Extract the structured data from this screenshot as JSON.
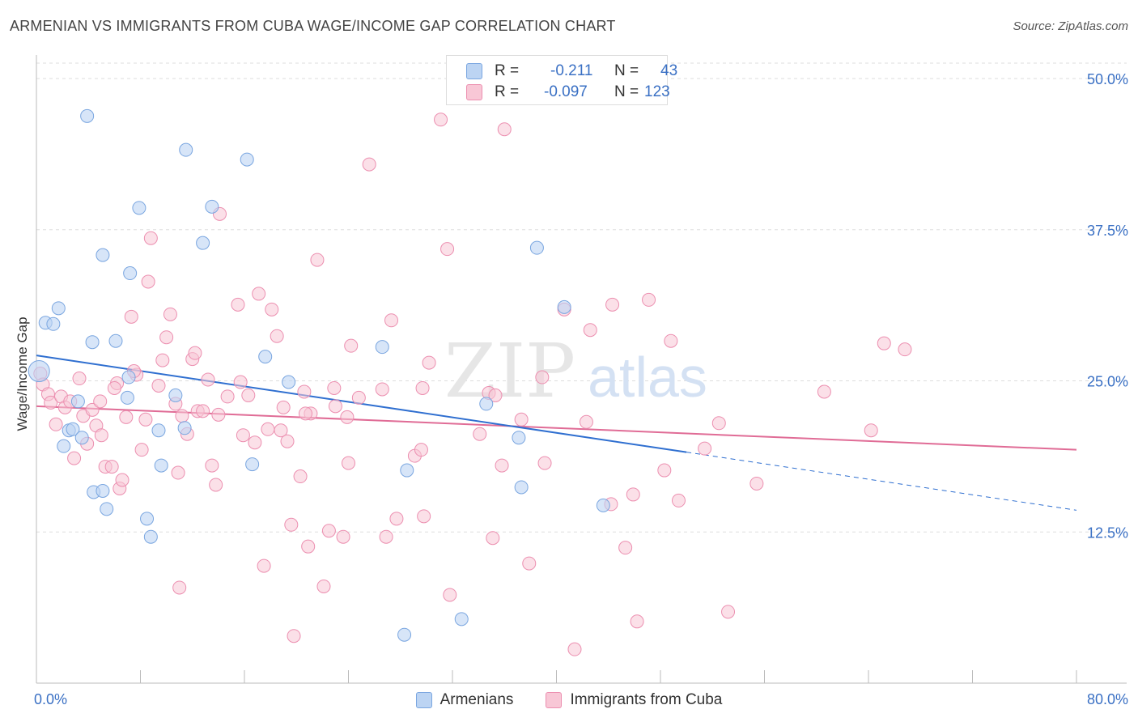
{
  "title": "ARMENIAN VS IMMIGRANTS FROM CUBA WAGE/INCOME GAP CORRELATION CHART",
  "source": "Source: ZipAtlas.com",
  "watermark": {
    "zip": "ZIP",
    "atlas": "atlas"
  },
  "stats_box": {
    "rows": [
      {
        "r_label": "R =",
        "r_value": "-0.211",
        "n_label": "N =",
        "n_value": "43",
        "color": "#bcd4f3"
      },
      {
        "r_label": "R =",
        "r_value": "-0.097",
        "n_label": "N =",
        "n_value": "123",
        "color": "#f8c7d6"
      }
    ]
  },
  "legend": {
    "items": [
      {
        "label": "Armenians",
        "color": "#bcd4f3"
      },
      {
        "label": "Immigrants from Cuba",
        "color": "#f8c7d6"
      }
    ]
  },
  "chart_data": {
    "type": "scatter",
    "title": "ARMENIAN VS IMMIGRANTS FROM CUBA WAGE/INCOME GAP CORRELATION CHART",
    "xlabel": "",
    "ylabel": "Wage/Income Gap",
    "xlim": [
      0,
      80
    ],
    "ylim": [
      0,
      50
    ],
    "x_tick_labels": [
      "0.0%",
      "80.0%"
    ],
    "y_ticks": [
      12.5,
      25.0,
      37.5,
      50.0
    ],
    "y_tick_labels": [
      "12.5%",
      "25.0%",
      "37.5%",
      "50.0%"
    ],
    "grid": true,
    "legend_position": "bottom",
    "series": [
      {
        "name": "Armenians",
        "color": "#7aa6e0",
        "fill": "#bcd4f3",
        "trend": {
          "x": [
            0,
            50
          ],
          "y": [
            27.1,
            19.1
          ],
          "dashed_to": [
            80,
            14.3
          ],
          "color": "#2f6fd0"
        },
        "points": [
          [
            0.2,
            25.8
          ],
          [
            0.7,
            29.8
          ],
          [
            1.3,
            29.7
          ],
          [
            1.7,
            31.0
          ],
          [
            3.9,
            46.9
          ],
          [
            2.1,
            19.6
          ],
          [
            2.5,
            20.9
          ],
          [
            2.8,
            21.0
          ],
          [
            3.2,
            23.3
          ],
          [
            3.5,
            20.3
          ],
          [
            4.4,
            15.8
          ],
          [
            5.1,
            15.9
          ],
          [
            5.4,
            14.4
          ],
          [
            4.3,
            28.2
          ],
          [
            6.1,
            28.3
          ],
          [
            5.1,
            35.4
          ],
          [
            7.1,
            25.3
          ],
          [
            7.0,
            23.6
          ],
          [
            7.2,
            33.9
          ],
          [
            7.9,
            39.3
          ],
          [
            8.5,
            13.6
          ],
          [
            8.8,
            12.1
          ],
          [
            9.4,
            20.9
          ],
          [
            9.6,
            18.0
          ],
          [
            10.7,
            23.8
          ],
          [
            11.4,
            21.1
          ],
          [
            11.5,
            44.1
          ],
          [
            12.8,
            36.4
          ],
          [
            13.5,
            39.4
          ],
          [
            16.2,
            43.3
          ],
          [
            16.6,
            18.1
          ],
          [
            17.6,
            27.0
          ],
          [
            19.4,
            24.9
          ],
          [
            26.6,
            27.8
          ],
          [
            28.5,
            17.6
          ],
          [
            28.3,
            4.0
          ],
          [
            32.7,
            5.3
          ],
          [
            34.6,
            23.1
          ],
          [
            37.1,
            20.3
          ],
          [
            37.3,
            16.2
          ],
          [
            38.5,
            36.0
          ],
          [
            40.6,
            31.1
          ],
          [
            43.6,
            14.7
          ]
        ]
      },
      {
        "name": "Immigrants from Cuba",
        "color": "#ec8fb0",
        "fill": "#f8c7d6",
        "trend": {
          "x": [
            0,
            80
          ],
          "y": [
            22.9,
            19.3
          ],
          "color": "#e06c96"
        },
        "points": [
          [
            0.3,
            25.6
          ],
          [
            0.5,
            24.7
          ],
          [
            0.9,
            23.9
          ],
          [
            1.1,
            23.2
          ],
          [
            1.5,
            21.4
          ],
          [
            1.9,
            23.7
          ],
          [
            2.2,
            22.8
          ],
          [
            2.6,
            23.3
          ],
          [
            2.9,
            18.6
          ],
          [
            3.3,
            25.2
          ],
          [
            3.6,
            22.1
          ],
          [
            3.9,
            19.8
          ],
          [
            4.3,
            22.6
          ],
          [
            4.6,
            21.3
          ],
          [
            5.0,
            20.5
          ],
          [
            4.9,
            23.3
          ],
          [
            5.3,
            17.9
          ],
          [
            5.8,
            17.9
          ],
          [
            6.2,
            24.8
          ],
          [
            6.4,
            16.1
          ],
          [
            6.6,
            16.8
          ],
          [
            6.9,
            22.0
          ],
          [
            7.3,
            30.3
          ],
          [
            7.7,
            25.5
          ],
          [
            8.1,
            19.3
          ],
          [
            8.4,
            21.8
          ],
          [
            8.6,
            33.2
          ],
          [
            8.8,
            36.8
          ],
          [
            9.4,
            24.6
          ],
          [
            9.7,
            26.7
          ],
          [
            10.0,
            28.6
          ],
          [
            10.3,
            30.5
          ],
          [
            10.7,
            23.1
          ],
          [
            10.9,
            17.4
          ],
          [
            11.0,
            7.9
          ],
          [
            11.2,
            22.1
          ],
          [
            11.6,
            20.6
          ],
          [
            12.0,
            26.8
          ],
          [
            12.2,
            27.3
          ],
          [
            12.4,
            22.5
          ],
          [
            12.8,
            22.5
          ],
          [
            13.2,
            25.1
          ],
          [
            13.5,
            18.0
          ],
          [
            13.8,
            16.4
          ],
          [
            14.0,
            22.2
          ],
          [
            14.7,
            23.7
          ],
          [
            15.5,
            31.3
          ],
          [
            15.7,
            24.9
          ],
          [
            15.9,
            20.5
          ],
          [
            16.3,
            23.8
          ],
          [
            16.8,
            19.9
          ],
          [
            17.1,
            32.2
          ],
          [
            17.5,
            9.7
          ],
          [
            17.8,
            21.0
          ],
          [
            18.1,
            30.9
          ],
          [
            18.5,
            28.7
          ],
          [
            18.8,
            20.9
          ],
          [
            19.0,
            22.8
          ],
          [
            19.3,
            20.0
          ],
          [
            19.6,
            13.1
          ],
          [
            19.8,
            3.9
          ],
          [
            20.3,
            17.1
          ],
          [
            20.6,
            24.1
          ],
          [
            20.9,
            11.3
          ],
          [
            21.1,
            22.3
          ],
          [
            21.6,
            35.0
          ],
          [
            22.1,
            8.0
          ],
          [
            22.5,
            12.6
          ],
          [
            22.9,
            24.4
          ],
          [
            23.0,
            22.9
          ],
          [
            23.6,
            12.1
          ],
          [
            23.9,
            22.0
          ],
          [
            24.0,
            18.2
          ],
          [
            24.2,
            27.9
          ],
          [
            24.8,
            23.6
          ],
          [
            25.6,
            42.9
          ],
          [
            26.6,
            24.3
          ],
          [
            26.9,
            12.1
          ],
          [
            27.3,
            30.0
          ],
          [
            27.7,
            13.6
          ],
          [
            29.1,
            18.8
          ],
          [
            29.6,
            19.3
          ],
          [
            29.8,
            13.8
          ],
          [
            30.2,
            26.5
          ],
          [
            29.7,
            24.4
          ],
          [
            31.1,
            46.6
          ],
          [
            31.6,
            35.9
          ],
          [
            31.8,
            7.3
          ],
          [
            34.1,
            20.6
          ],
          [
            34.8,
            24.0
          ],
          [
            35.1,
            12.0
          ],
          [
            35.3,
            23.8
          ],
          [
            35.8,
            18.0
          ],
          [
            36.0,
            45.8
          ],
          [
            37.3,
            21.8
          ],
          [
            37.9,
            9.9
          ],
          [
            38.9,
            25.3
          ],
          [
            39.1,
            18.2
          ],
          [
            40.6,
            30.9
          ],
          [
            41.4,
            2.8
          ],
          [
            42.3,
            21.6
          ],
          [
            42.6,
            29.2
          ],
          [
            44.2,
            14.8
          ],
          [
            44.3,
            31.3
          ],
          [
            45.3,
            11.2
          ],
          [
            45.9,
            15.6
          ],
          [
            46.2,
            5.1
          ],
          [
            47.1,
            31.7
          ],
          [
            48.3,
            17.6
          ],
          [
            48.8,
            28.3
          ],
          [
            49.4,
            15.1
          ],
          [
            51.4,
            19.4
          ],
          [
            52.5,
            21.5
          ],
          [
            53.2,
            5.9
          ],
          [
            55.4,
            16.5
          ],
          [
            60.6,
            24.1
          ],
          [
            64.2,
            20.9
          ],
          [
            65.2,
            28.1
          ],
          [
            66.8,
            27.6
          ],
          [
            20.7,
            22.3
          ],
          [
            14.1,
            38.8
          ],
          [
            7.5,
            25.8
          ],
          [
            6.0,
            24.4
          ]
        ]
      }
    ]
  }
}
